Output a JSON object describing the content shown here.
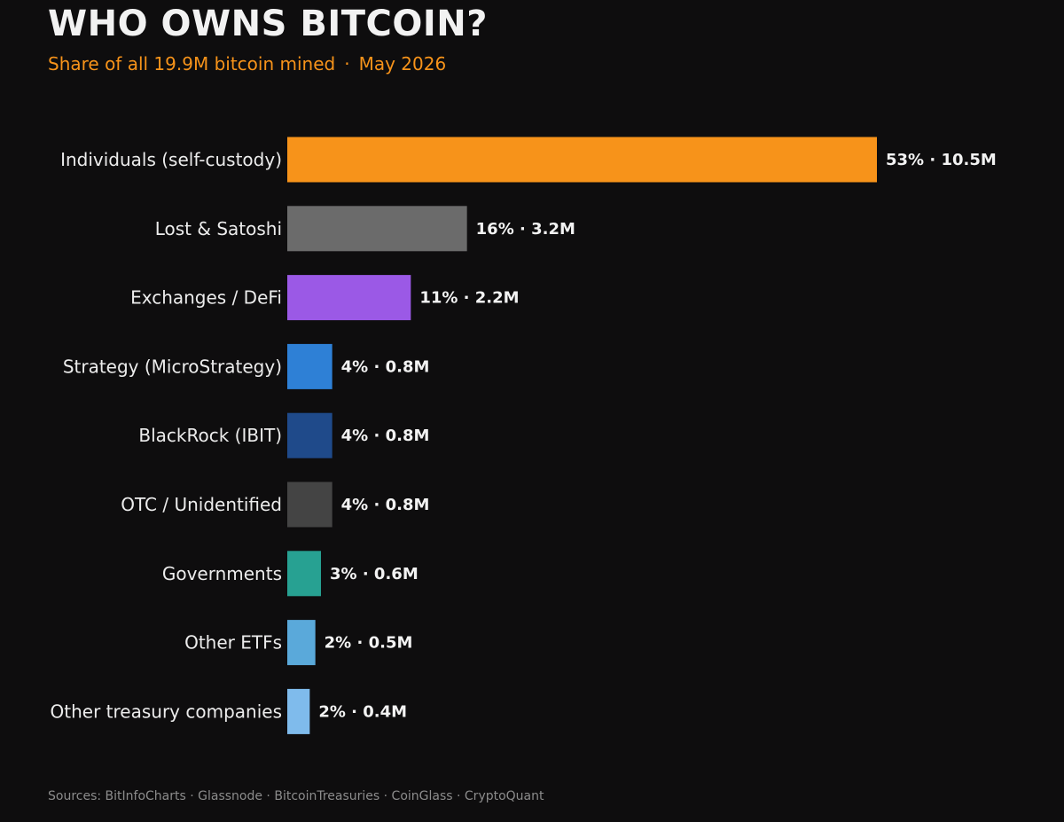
{
  "header": {
    "title": "WHO OWNS BITCOIN?",
    "subtitle_left": "Share of all 19.9M bitcoin mined",
    "subtitle_sep": "·",
    "subtitle_right": "May 2026"
  },
  "footer": {
    "sources": "Sources: BitInfoCharts · Glassnode · BitcoinTreasuries · CoinGlass · CryptoQuant"
  },
  "colors": {
    "background": "#0e0d0e",
    "accent": "#f7931a"
  },
  "chart_data": {
    "type": "bar",
    "orientation": "horizontal",
    "title": "WHO OWNS BITCOIN?",
    "subtitle": "Share of all 19.9M bitcoin mined · May 2026",
    "categories": [
      "Individuals (self-custody)",
      "Lost & Satoshi",
      "Exchanges / DeFi",
      "Strategy (MicroStrategy)",
      "BlackRock (IBIT)",
      "OTC / Unidentified",
      "Governments",
      "Other ETFs",
      "Other treasury companies"
    ],
    "values": [
      10.5,
      3.2,
      2.2,
      0.8,
      0.8,
      0.8,
      0.6,
      0.5,
      0.4
    ],
    "value_unit": "M BTC",
    "percent_labels": [
      "53%",
      "16%",
      "11%",
      "4%",
      "4%",
      "4%",
      "3%",
      "2%",
      "2%"
    ],
    "amount_labels": [
      "10.5M",
      "3.2M",
      "2.2M",
      "0.8M",
      "0.8M",
      "0.8M",
      "0.6M",
      "0.5M",
      "0.4M"
    ],
    "label_separator": "·",
    "bar_colors": [
      "#f7931a",
      "#6b6b6b",
      "#9b59e6",
      "#2e80d6",
      "#1f4a8a",
      "#444444",
      "#27a192",
      "#5aa9da",
      "#7fbbec"
    ],
    "xlim": [
      0,
      10.5
    ],
    "xlabel": "",
    "ylabel": "",
    "grid": false,
    "legend": false
  }
}
